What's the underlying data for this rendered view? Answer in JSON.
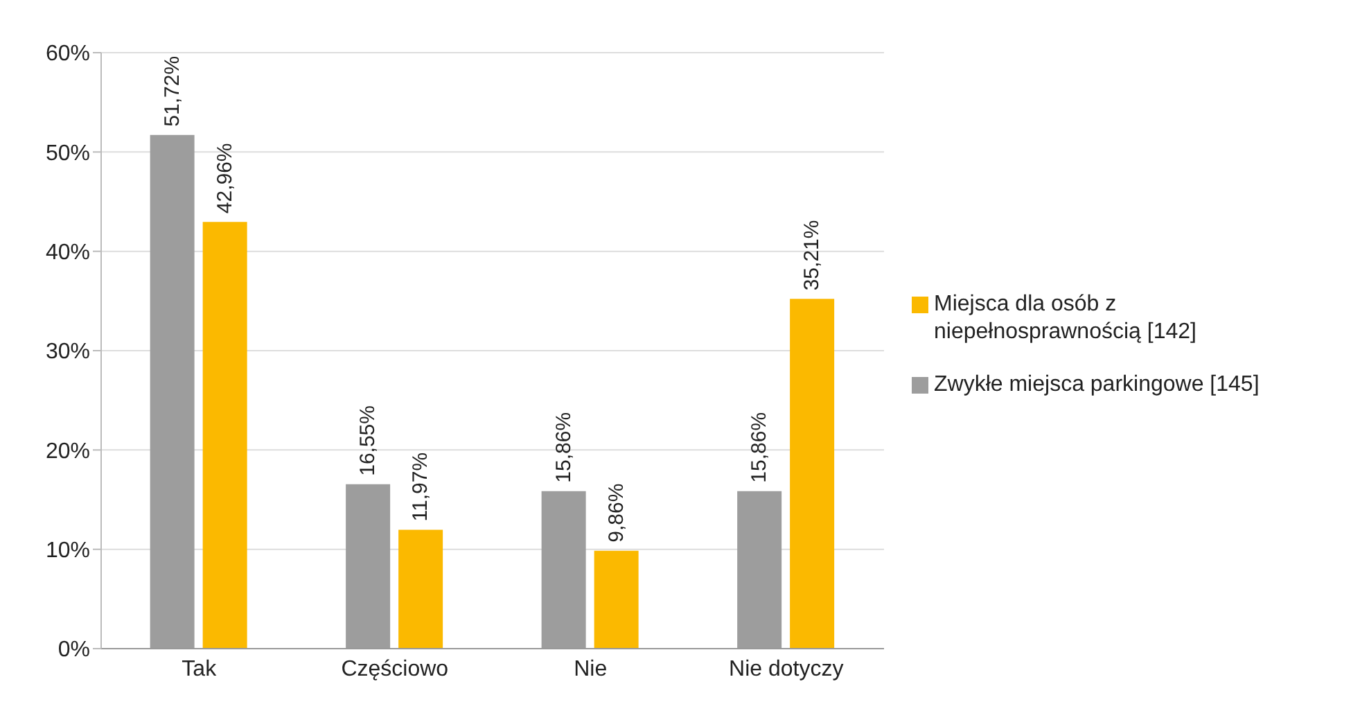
{
  "chart_data": {
    "type": "bar",
    "categories": [
      "Tak",
      "Częściowo",
      "Nie",
      "Nie dotyczy"
    ],
    "series": [
      {
        "name": "Zwykłe miejsca parkingowe [145]",
        "color": "#9d9d9d",
        "values": [
          51.72,
          16.55,
          15.86,
          15.86
        ],
        "value_labels": [
          "51,72%",
          "16,55%",
          "15,86%",
          "15,86%"
        ]
      },
      {
        "name": "Miejsca dla osób z niepełnosprawnością [142]",
        "color": "#fbb900",
        "values": [
          42.96,
          11.97,
          9.86,
          35.21
        ],
        "value_labels": [
          "42,96%",
          "11,97%",
          "9,86%",
          "35,21%"
        ]
      }
    ],
    "ylim": [
      0,
      60
    ],
    "yticks": [
      {
        "value": 0,
        "label": "0%"
      },
      {
        "value": 10,
        "label": "10%"
      },
      {
        "value": 20,
        "label": "20%"
      },
      {
        "value": 30,
        "label": "30%"
      },
      {
        "value": 40,
        "label": "40%"
      },
      {
        "value": 50,
        "label": "50%"
      },
      {
        "value": 60,
        "label": "60%"
      }
    ],
    "grid": "y",
    "legend": "right"
  }
}
